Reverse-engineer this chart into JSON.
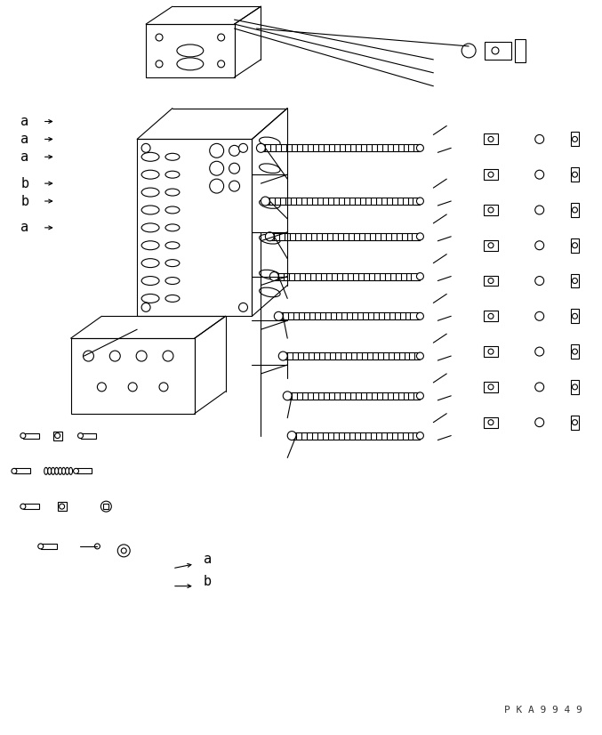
{
  "bg_color": "#ffffff",
  "line_color": "#000000",
  "text_color": "#000000",
  "watermark": "P K A 9 9 4 9",
  "label_a": "a",
  "label_b": "b",
  "figsize": [
    6.77,
    8.26
  ],
  "dpi": 100
}
